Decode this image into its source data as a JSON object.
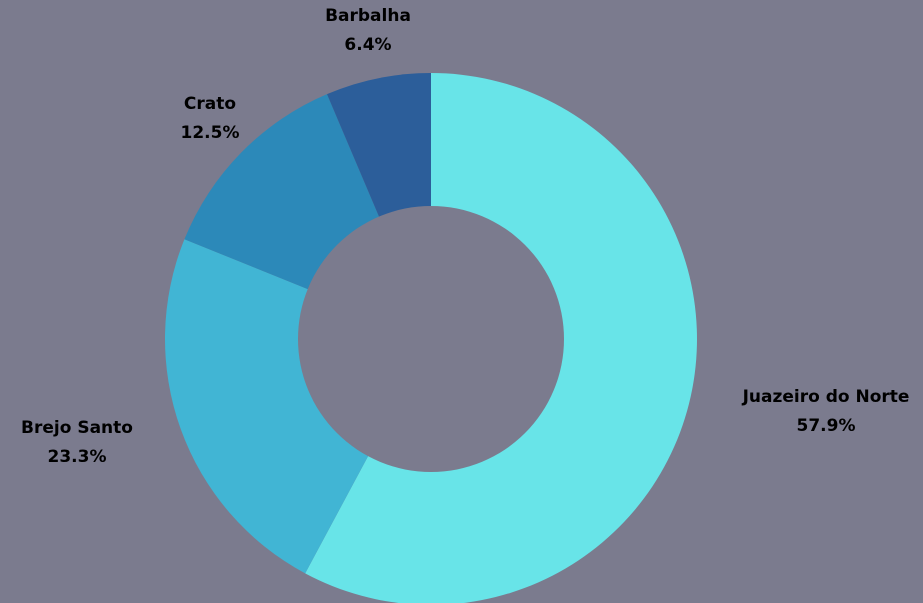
{
  "colors": {
    "background": "#7b7b8e"
  },
  "chart_data": {
    "type": "pie",
    "donut": true,
    "title": "",
    "legend": "none",
    "slices": [
      {
        "label": "Juazeiro do Norte",
        "value": 57.9,
        "value_label": "57.9%",
        "color": "#68e4e8"
      },
      {
        "label": "Brejo Santo",
        "value": 23.3,
        "value_label": "23.3%",
        "color": "#41b5d4"
      },
      {
        "label": "Crato",
        "value": 12.5,
        "value_label": "12.5%",
        "color": "#2c89b9"
      },
      {
        "label": "Barbalha",
        "value": 6.4,
        "value_label": "6.4%",
        "color": "#2c5e9a"
      }
    ]
  }
}
